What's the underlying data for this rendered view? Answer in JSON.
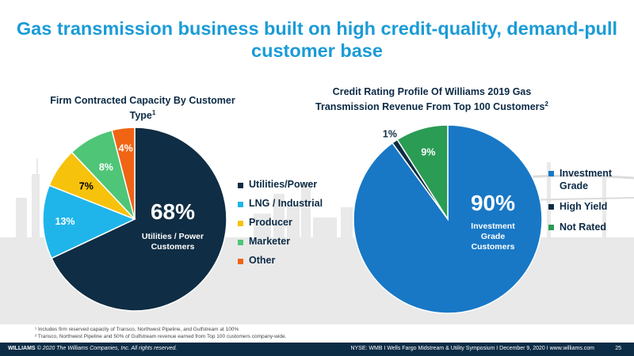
{
  "title": "Gas transmission business built on high credit-quality, demand-pull customer base",
  "chart_data": [
    {
      "type": "pie",
      "title": "Firm Contracted Capacity By Customer Type",
      "title_footnote": "1",
      "slices": [
        {
          "label": "Utilities/Power",
          "value": 68,
          "display": "68%",
          "color": "#0f2d44"
        },
        {
          "label": "LNG / Industrial",
          "value": 13,
          "display": "13%",
          "color": "#1fb5ea"
        },
        {
          "label": "Producer",
          "value": 7,
          "display": "7%",
          "color": "#f7c20c"
        },
        {
          "label": "Marketer",
          "value": 8,
          "display": "8%",
          "color": "#4fc577"
        },
        {
          "label": "Other",
          "value": 4,
          "display": "4%",
          "color": "#f06414"
        }
      ],
      "center_label": {
        "big": "68%",
        "small": "Utilities / Power Customers"
      },
      "legend_position": "right"
    },
    {
      "type": "pie",
      "title": "Credit Rating Profile Of Williams 2019 Gas Transmission Revenue From Top 100 Customers",
      "title_footnote": "2",
      "slices": [
        {
          "label": "Investment Grade",
          "value": 90,
          "display": "90%",
          "color": "#1878c6"
        },
        {
          "label": "High Yield",
          "value": 1,
          "display": "1%",
          "color": "#0f2d44"
        },
        {
          "label": "Not Rated",
          "value": 9,
          "display": "9%",
          "color": "#2a9c54"
        }
      ],
      "center_label": {
        "big": "90%",
        "small": "Investment Grade Customers"
      },
      "legend_position": "right"
    }
  ],
  "footnotes": [
    "¹ Includes firm reserved capacity of Transco, Northwest Pipeline, and Gulfstream at 100%",
    "² Transco, Northwest Pipeline and 50% of Gulfstream revenue earned from Top 100 customers company-wide."
  ],
  "footer": {
    "brand": "WILLIAMS",
    "copyright": "© 2020 The Williams Companies, Inc. All rights reserved.",
    "right": "NYSE: WMB   I   Wells Fargo Midstream & Utility Symposium   I   December 9, 2020   I   www.williams.com",
    "page": "25"
  }
}
